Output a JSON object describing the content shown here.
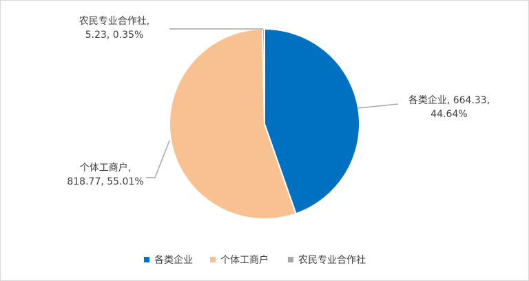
{
  "chart_data": {
    "type": "pie",
    "title": "",
    "legend_position": "bottom",
    "slices": [
      {
        "name": "各类企业",
        "value": 664.33,
        "percent": "44.64%",
        "color": "#0070C0",
        "label_lines": [
          "各类企业, 664.33,",
          "44.64%"
        ]
      },
      {
        "name": "个体工商户",
        "value": 818.77,
        "percent": "55.01%",
        "color": "#F8C192",
        "label_lines": [
          "个体工商户,",
          "818.77, 55.01%"
        ]
      },
      {
        "name": "农民专业合作社",
        "value": 5.23,
        "percent": "0.35%",
        "color": "#A5A5A5",
        "label_lines": [
          "农民专业合作社,",
          "5.23, 0.35%"
        ]
      }
    ]
  }
}
